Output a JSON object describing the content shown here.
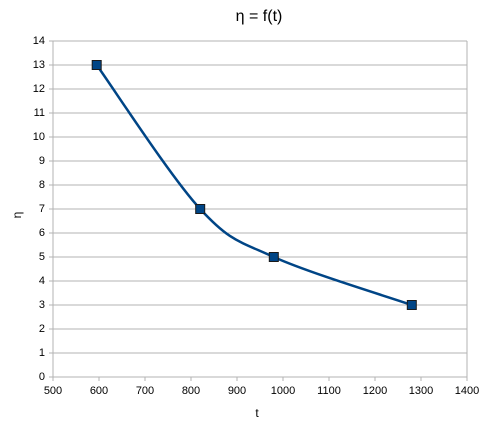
{
  "chart_data": {
    "type": "scatter",
    "title": "η = f(t)",
    "x_label": "t",
    "y_label": "η",
    "x": [
      595,
      820,
      980,
      1280
    ],
    "values": [
      13,
      7,
      5,
      3
    ],
    "color": "#004586",
    "smooth": true,
    "xlim": [
      500,
      1400
    ],
    "xticks": [
      500,
      600,
      700,
      800,
      900,
      1000,
      1100,
      1200,
      1300,
      1400
    ],
    "ylim": [
      0,
      14
    ],
    "yticks": [
      0,
      1,
      2,
      3,
      4,
      5,
      6,
      7,
      8,
      9,
      10,
      11,
      12,
      13,
      14
    ],
    "grid": true
  }
}
